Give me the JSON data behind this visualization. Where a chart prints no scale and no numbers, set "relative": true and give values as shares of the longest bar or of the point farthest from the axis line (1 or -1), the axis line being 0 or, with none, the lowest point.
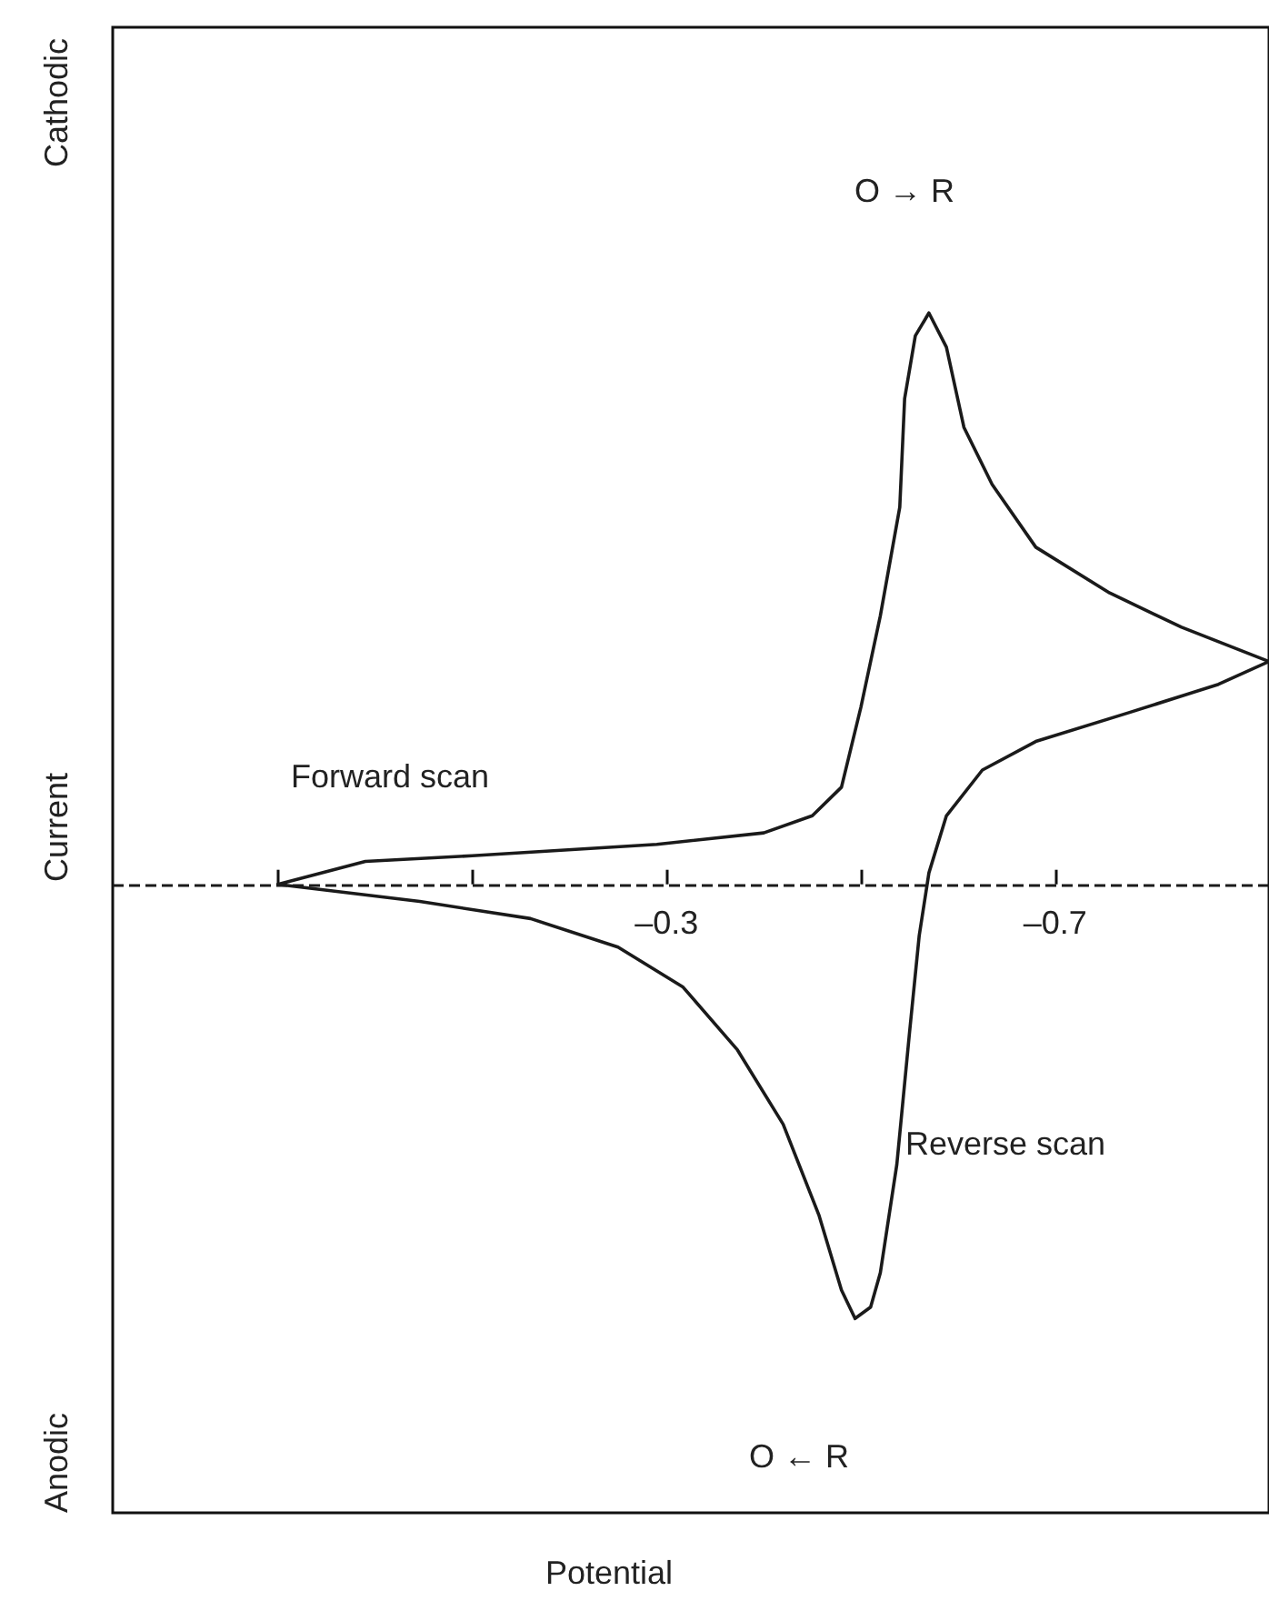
{
  "chart_data": {
    "type": "line",
    "ylabel": "Current",
    "relative": true,
    "annotations": [
      "Cathodic",
      "Anodic",
      "O → R",
      "O ← R",
      "Forward scan",
      "Reverse scan",
      "Potential"
    ],
    "xlim": [
      0.27,
      -0.92
    ],
    "xticks": [
      {
        "value": 0.1,
        "label": null
      },
      {
        "value": -0.1,
        "label": null
      },
      {
        "value": -0.3,
        "label": "–0.3"
      },
      {
        "value": -0.5,
        "label": null
      },
      {
        "value": -0.7,
        "label": "–0.7"
      }
    ],
    "ref_lines": [
      {
        "axis": "y",
        "value": 0,
        "line_style": "dashed",
        "color": "#1a1a1a"
      }
    ],
    "series": [
      {
        "color": "#1a1a1a",
        "x": [
          0.1,
          0.01,
          -0.1,
          -0.29,
          -0.4,
          -0.45,
          -0.48,
          -0.5,
          -0.52,
          -0.54,
          -0.545,
          -0.556,
          -0.57,
          -0.588,
          -0.606,
          -0.635,
          -0.68,
          -0.756,
          -0.83,
          -0.92
        ],
        "values": [
          0,
          0.04,
          0.05,
          0.07,
          0.09,
          0.12,
          0.17,
          0.31,
          0.47,
          0.66,
          0.85,
          0.96,
          1,
          0.94,
          0.8,
          0.7,
          0.59,
          0.51,
          0.45,
          0.39
        ]
      },
      {
        "color": "#1a1a1a",
        "x": [
          -0.92,
          -0.868,
          -0.775,
          -0.68,
          -0.625,
          -0.588,
          -0.57,
          -0.56,
          -0.55,
          -0.537,
          -0.52,
          -0.51,
          -0.494,
          -0.48,
          -0.457,
          -0.42,
          -0.373,
          -0.317,
          -0.25,
          -0.16,
          -0.046,
          0.1
        ],
        "values": [
          0.39,
          0.35,
          0.3,
          0.25,
          0.2,
          0.12,
          0.02,
          -0.09,
          -0.26,
          -0.49,
          -0.68,
          -0.74,
          -0.76,
          -0.71,
          -0.58,
          -0.42,
          -0.29,
          -0.18,
          -0.11,
          -0.06,
          -0.03,
          0
        ]
      }
    ]
  }
}
